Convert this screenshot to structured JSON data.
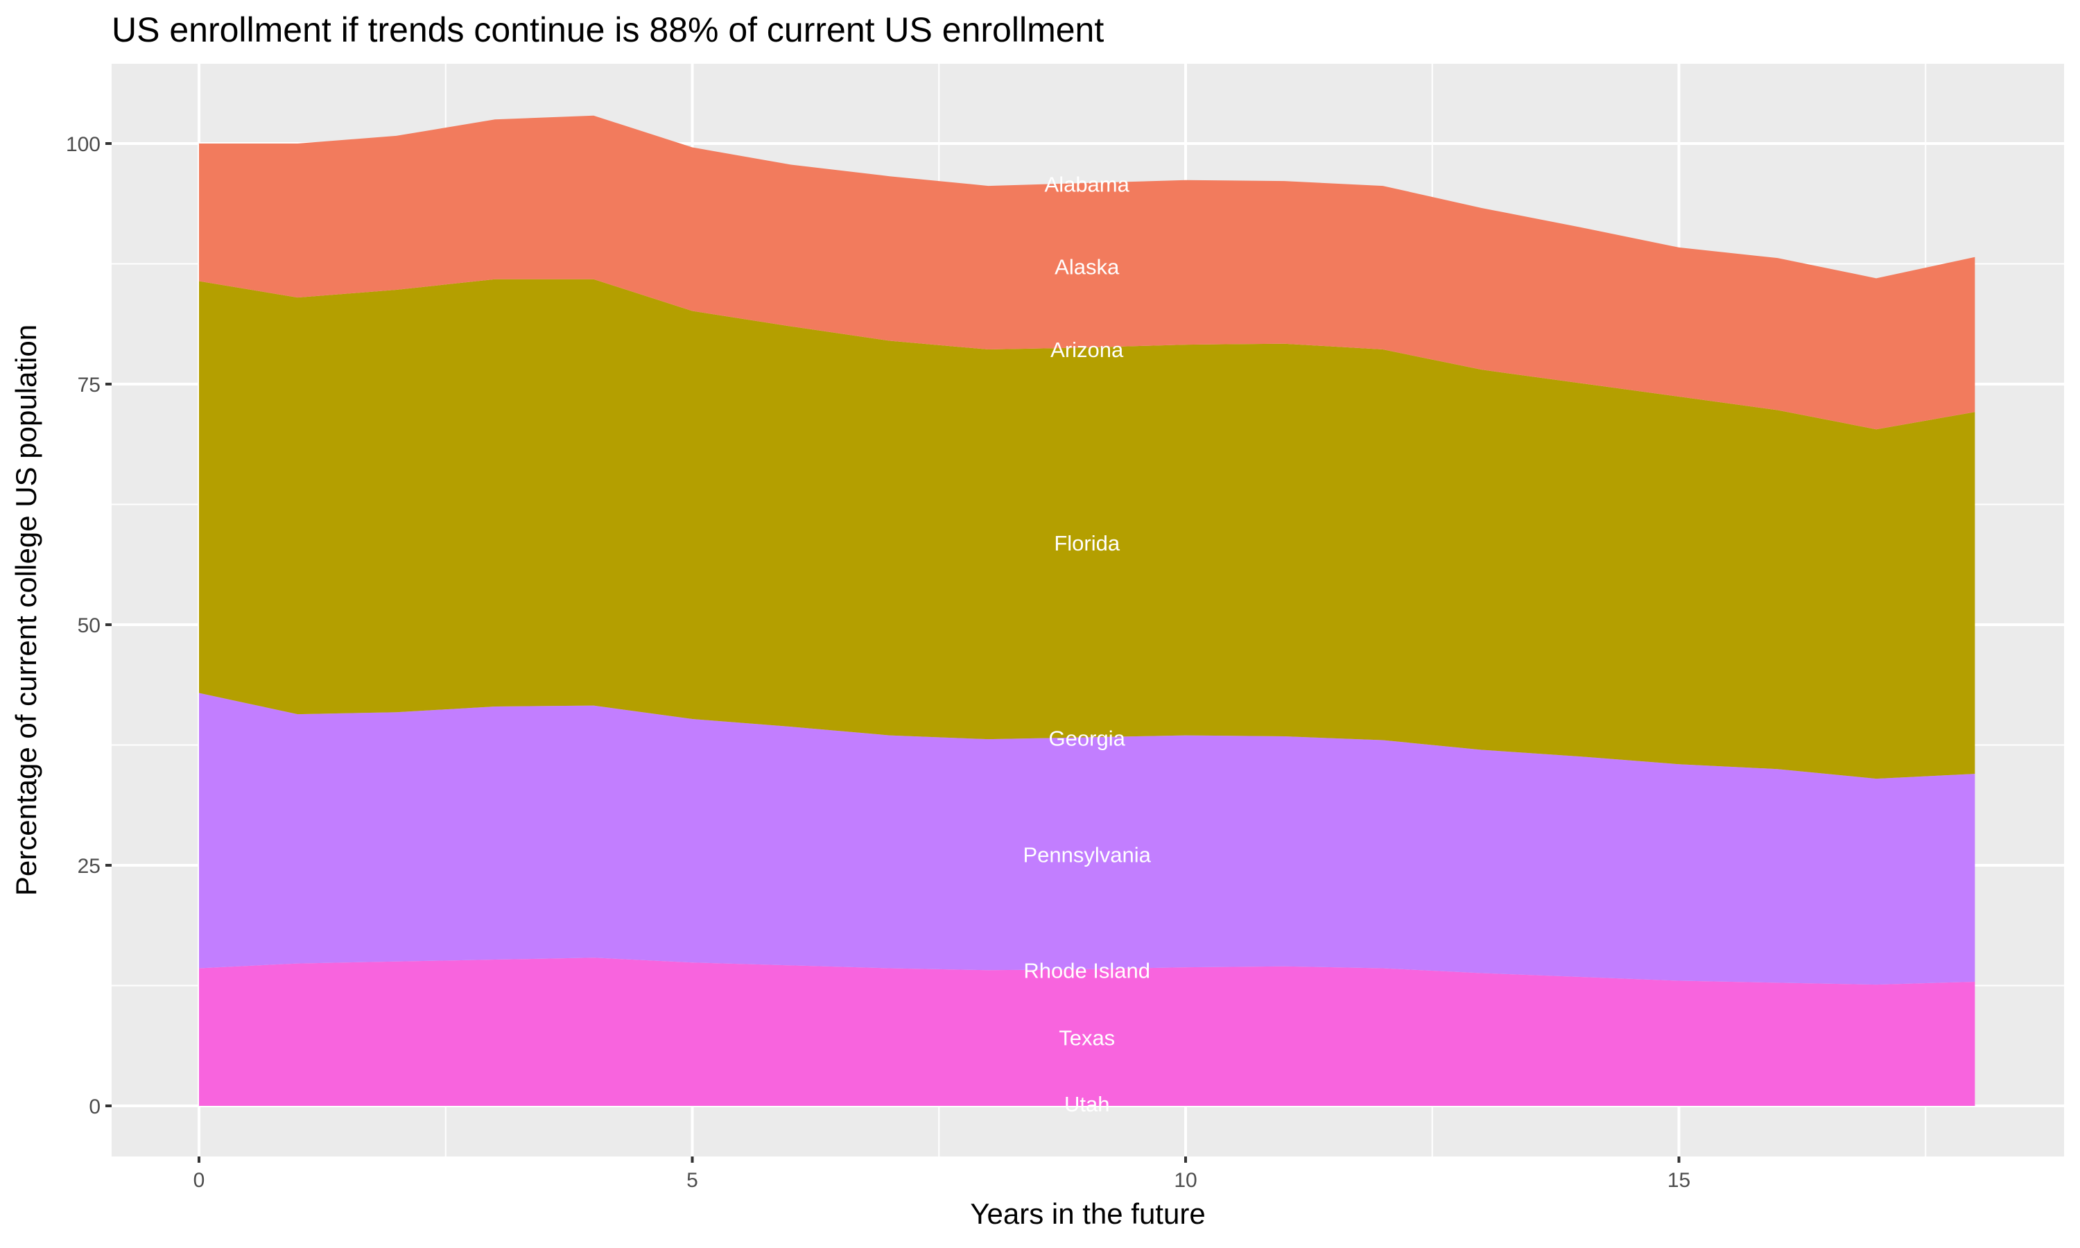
{
  "chart_data": {
    "type": "area",
    "stacked": true,
    "title": "US enrollment if trends continue is 88% of current US enrollment",
    "xlabel": "Years in the future",
    "ylabel": "Percentage of current college US population",
    "xlim": [
      -1.8,
      37.8
    ],
    "ylim": [
      -5,
      107
    ],
    "x_ticks": [
      0,
      5,
      10,
      15
    ],
    "y_ticks": [
      0,
      25,
      50,
      75,
      100
    ],
    "grid": true,
    "legend": "none",
    "x": [
      0,
      1,
      2,
      3,
      4,
      5,
      6,
      7,
      8,
      9,
      10,
      11,
      12,
      13,
      14,
      15,
      16,
      17,
      18
    ],
    "series": [
      {
        "color": "#F864DE",
        "cumulative_top": [
          14.3,
          14.8,
          15.0,
          15.2,
          15.4,
          14.9,
          14.6,
          14.3,
          14.1,
          14.2,
          14.4,
          14.5,
          14.3,
          13.8,
          13.4,
          13.0,
          12.8,
          12.6,
          12.9
        ]
      },
      {
        "color": "#C27EFF",
        "cumulative_top": [
          42.9,
          40.7,
          40.9,
          41.5,
          41.6,
          40.2,
          39.4,
          38.5,
          38.1,
          38.3,
          38.5,
          38.4,
          38.0,
          37.0,
          36.3,
          35.5,
          35.0,
          34.0,
          34.5
        ]
      },
      {
        "color": "#B49F00",
        "cumulative_top": [
          85.7,
          84.0,
          84.8,
          85.9,
          85.9,
          82.6,
          81.0,
          79.5,
          78.6,
          78.8,
          79.1,
          79.2,
          78.6,
          76.5,
          75.1,
          73.7,
          72.3,
          70.3,
          72.1
        ]
      },
      {
        "color": "#F27B5D",
        "cumulative_top": [
          100.0,
          100.0,
          100.8,
          102.5,
          102.9,
          99.6,
          97.8,
          96.6,
          95.6,
          95.9,
          96.2,
          96.1,
          95.6,
          93.3,
          91.3,
          89.2,
          88.1,
          86.0,
          88.2
        ]
      }
    ],
    "annotations": [
      {
        "text": "Alabama",
        "x": 9,
        "y": 95.6
      },
      {
        "text": "Alaska",
        "x": 9,
        "y": 87.0
      },
      {
        "text": "Arizona",
        "x": 9,
        "y": 78.4
      },
      {
        "text": "Florida",
        "x": 9,
        "y": 58.3
      },
      {
        "text": "Georgia",
        "x": 9,
        "y": 38.0
      },
      {
        "text": "Pennsylvania",
        "x": 9,
        "y": 25.9
      },
      {
        "text": "Rhode Island",
        "x": 9,
        "y": 13.9
      },
      {
        "text": "Texas",
        "x": 9,
        "y": 6.9
      },
      {
        "text": "Utah",
        "x": 9,
        "y": 0
      }
    ],
    "panel_background": "#EBEBEB",
    "grid_color": "#FFFFFF"
  }
}
